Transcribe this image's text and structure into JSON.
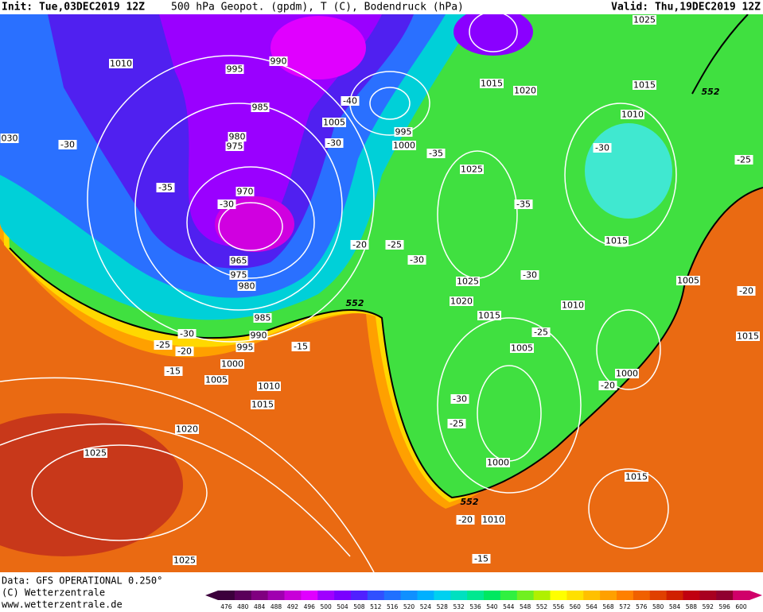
{
  "header": {
    "init": "Init: Tue,03DEC2019 12Z",
    "field": "500 hPa Geopot. (gpdm), T (C), Bodendruck (hPa)",
    "valid": "Valid: Thu,19DEC2019 12Z"
  },
  "footer": [
    "Data: GFS OPERATIONAL 0.250°",
    "(C) Wetterzentrale",
    "www.wetterzentrale.de"
  ],
  "isobar_labels": [
    "1010",
    "995",
    "990",
    "985",
    "980",
    "975",
    "970",
    "965",
    "975",
    "980",
    "985",
    "990",
    "995",
    "1000",
    "1005",
    "1010",
    "1015",
    "1020",
    "1025",
    "1025",
    "1005",
    "995",
    "1000",
    "1015",
    "1020",
    "1025",
    "1015",
    "1010",
    "1025",
    "1015",
    "1025",
    "1020",
    "1015",
    "1010",
    "1005",
    "1005",
    "1000",
    "1000",
    "1015",
    "1010",
    "1015",
    "030"
  ],
  "temperature_labels": [
    "-30",
    "-35",
    "-30",
    "-40",
    "-30",
    "-35",
    "-30",
    "-25",
    "-35",
    "-30",
    "-25",
    "-20",
    "-30",
    "-25",
    "-20",
    "-30",
    "-25",
    "-20",
    "-15",
    "-15",
    "-30",
    "-25",
    "-20",
    "-20",
    "-15"
  ],
  "height_labels": [
    "552",
    "552",
    "552"
  ],
  "colorbar": {
    "labels": [
      476,
      480,
      484,
      488,
      492,
      496,
      500,
      504,
      508,
      512,
      516,
      520,
      524,
      528,
      532,
      536,
      540,
      544,
      548,
      552,
      556,
      560,
      564,
      568,
      572,
      576,
      580,
      584,
      588,
      592,
      596,
      600
    ],
    "colors": [
      "#3c003c",
      "#5a005a",
      "#800080",
      "#a000b0",
      "#c800d8",
      "#e000ff",
      "#a000ff",
      "#7a00ff",
      "#5020ff",
      "#3050ff",
      "#2070ff",
      "#1090ff",
      "#00b0ff",
      "#00d0f0",
      "#00e0c0",
      "#00e890",
      "#00e860",
      "#30f040",
      "#70f020",
      "#b0f000",
      "#ffff00",
      "#ffe000",
      "#ffc000",
      "#ffa000",
      "#ff8000",
      "#f06000",
      "#e04000",
      "#d02000",
      "#c00010",
      "#a80020",
      "#900030",
      "#d0006a"
    ]
  }
}
